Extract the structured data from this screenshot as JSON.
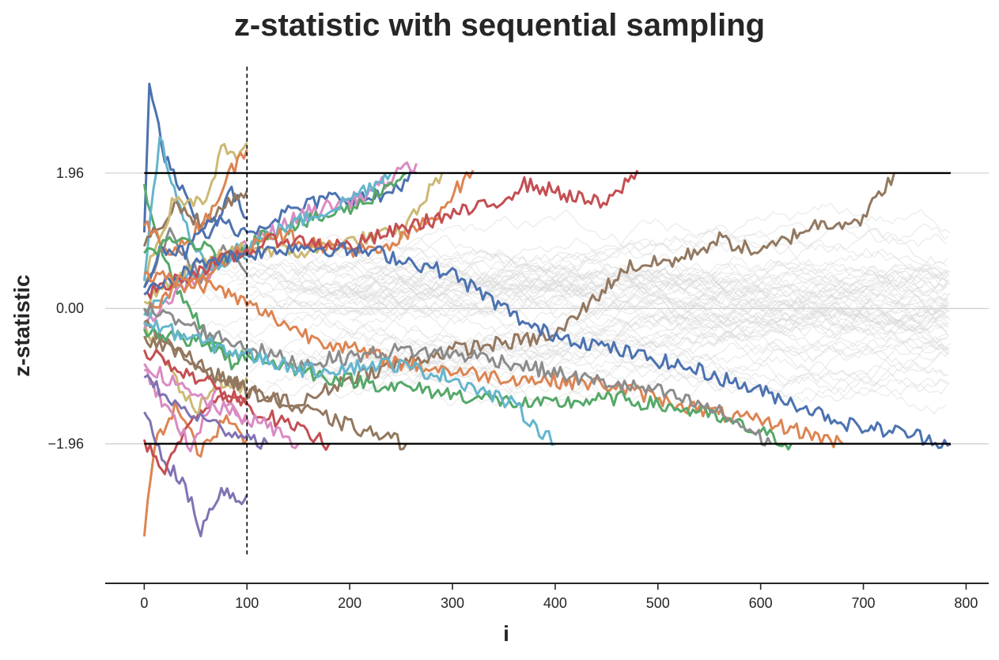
{
  "chart_data": {
    "type": "line",
    "title": "z-statistic with sequential sampling",
    "xlabel": "i",
    "ylabel": "z-statistic",
    "xlim": [
      -38,
      822
    ],
    "ylim": [
      -3.98,
      3.55
    ],
    "x_ticks": [
      0,
      100,
      200,
      300,
      400,
      500,
      600,
      700,
      800
    ],
    "x_tick_labels": [
      "0",
      "100",
      "200",
      "300",
      "400",
      "500",
      "600",
      "700",
      "800"
    ],
    "y_ticks": [
      1.96,
      0.0,
      -1.96
    ],
    "y_tick_labels": [
      "1.96",
      "0.00",
      "−1.96"
    ],
    "grid": "horizontal",
    "legend": "none",
    "reference_lines": [
      {
        "kind": "horizontal",
        "y": 1.96,
        "x_range": [
          0,
          785
        ],
        "style": "solid",
        "color": "#000000"
      },
      {
        "kind": "horizontal",
        "y": -1.96,
        "x_range": [
          0,
          785
        ],
        "style": "solid",
        "color": "#000000"
      },
      {
        "kind": "vertical",
        "x": 100,
        "y_range": [
          -3.6,
          3.5
        ],
        "style": "dashed",
        "color": "#000000"
      }
    ],
    "background_series": {
      "count": 60,
      "color": "#d9d9d9",
      "x_range": [
        0,
        785
      ],
      "note_visible": "unstopped paths in light gray"
    },
    "series": [
      {
        "color": "#4c72b0",
        "x": [
          0,
          5,
          20,
          40,
          60,
          85,
          100
        ],
        "y": [
          1.1,
          3.2,
          2.2,
          1.6,
          1.0,
          1.7,
          1.3
        ]
      },
      {
        "color": "#dd8452",
        "x": [
          0,
          10,
          30,
          55,
          80,
          100
        ],
        "y": [
          -3.3,
          -2.0,
          -1.4,
          -2.1,
          -1.6,
          -1.9
        ]
      },
      {
        "color": "#8172b3",
        "x": [
          0,
          20,
          40,
          55,
          75,
          95,
          100
        ],
        "y": [
          -1.5,
          -2.2,
          -2.6,
          -3.2,
          -2.6,
          -2.8,
          -2.7
        ]
      },
      {
        "color": "#55a868",
        "x": [
          0,
          15,
          35,
          60,
          85,
          100
        ],
        "y": [
          1.8,
          0.9,
          0.2,
          -0.4,
          -0.8,
          -0.6
        ]
      },
      {
        "color": "#c44e52",
        "x": [
          0,
          20,
          45,
          75,
          100
        ],
        "y": [
          -1.9,
          -2.4,
          -1.6,
          -1.2,
          -1.4
        ]
      },
      {
        "color": "#64b5cd",
        "x": [
          0,
          15,
          35,
          60,
          90,
          100
        ],
        "y": [
          0.4,
          2.5,
          1.4,
          0.6,
          0.9,
          0.7
        ]
      },
      {
        "color": "#ccb974",
        "x": [
          0,
          25,
          50,
          70,
          90,
          100
        ],
        "y": [
          -0.2,
          -0.9,
          -1.5,
          -1.0,
          -1.2,
          -1.0
        ]
      },
      {
        "color": "#937860",
        "x": [
          0,
          30,
          60,
          85,
          100
        ],
        "y": [
          0.9,
          1.5,
          1.2,
          1.6,
          1.7
        ]
      },
      {
        "color": "#da8bc3",
        "x": [
          0,
          20,
          45,
          70,
          100
        ],
        "y": [
          -0.9,
          -1.4,
          -2.0,
          -1.2,
          -1.6
        ]
      },
      {
        "color": "#8c8c8c",
        "x": [
          0,
          25,
          55,
          80,
          100
        ],
        "y": [
          0.3,
          1.1,
          0.4,
          0.9,
          0.5
        ]
      },
      {
        "color": "#ccb974",
        "x": [
          0,
          30,
          60,
          75,
          90,
          100
        ],
        "y": [
          0.5,
          1.6,
          1.5,
          2.3,
          2.2,
          2.4
        ]
      },
      {
        "color": "#dd8452",
        "x": [
          0,
          30,
          60,
          85,
          100
        ],
        "y": [
          1.2,
          0.8,
          1.3,
          2.0,
          2.3
        ]
      },
      {
        "color": "#4c72b0",
        "x": [
          0,
          15,
          40,
          65,
          100,
          140,
          180,
          230,
          265
        ],
        "y": [
          0.3,
          0.9,
          0.8,
          1.3,
          1.1,
          1.4,
          1.6,
          1.6,
          1.96
        ]
      },
      {
        "color": "#da8bc3",
        "x": [
          0,
          30,
          70,
          110,
          160,
          210,
          265
        ],
        "y": [
          -0.3,
          0.2,
          0.6,
          1.0,
          1.4,
          1.6,
          2.1
        ]
      },
      {
        "color": "#55a868",
        "x": [
          0,
          40,
          80,
          120,
          170,
          210,
          255
        ],
        "y": [
          0.8,
          1.0,
          0.7,
          1.1,
          1.3,
          1.5,
          1.96
        ]
      },
      {
        "color": "#ccb974",
        "x": [
          0,
          50,
          100,
          150,
          210,
          250,
          290
        ],
        "y": [
          0.1,
          0.6,
          0.9,
          0.8,
          1.0,
          1.1,
          1.96
        ]
      },
      {
        "color": "#64b5cd",
        "x": [
          0,
          40,
          90,
          140,
          190,
          240
        ],
        "y": [
          -0.1,
          0.4,
          0.8,
          1.2,
          1.5,
          1.96
        ]
      },
      {
        "color": "#dd8452",
        "x": [
          0,
          60,
          120,
          180,
          230,
          280,
          320
        ],
        "y": [
          0.0,
          0.5,
          1.1,
          0.9,
          0.8,
          1.3,
          2.0
        ]
      },
      {
        "color": "#c44e52",
        "x": [
          0,
          60,
          130,
          200,
          260,
          310,
          340,
          370,
          400,
          420,
          450,
          480
        ],
        "y": [
          0.2,
          0.6,
          1.0,
          0.9,
          1.2,
          1.4,
          1.5,
          1.8,
          1.7,
          1.6,
          1.5,
          2.0
        ]
      },
      {
        "color": "#937860",
        "x": [
          0,
          50,
          100,
          150,
          200,
          300,
          400,
          470,
          520,
          560,
          600,
          650,
          700,
          730
        ],
        "y": [
          -0.2,
          -0.8,
          -1.2,
          -1.4,
          -1.0,
          -0.6,
          -0.4,
          0.6,
          0.7,
          1.0,
          0.8,
          1.2,
          1.3,
          1.96
        ]
      },
      {
        "color": "#4c72b0",
        "x": [
          0,
          60,
          150,
          230,
          300,
          380,
          460,
          540,
          620,
          690,
          740,
          785
        ],
        "y": [
          0.2,
          0.7,
          0.9,
          0.8,
          0.5,
          -0.3,
          -0.6,
          -0.9,
          -1.3,
          -1.7,
          -1.8,
          -1.96
        ]
      },
      {
        "color": "#dd8452",
        "x": [
          0,
          70,
          160,
          250,
          350,
          450,
          550,
          620,
          680
        ],
        "y": [
          0.5,
          0.3,
          -0.4,
          -0.8,
          -1.0,
          -1.1,
          -1.5,
          -1.7,
          -1.96
        ]
      },
      {
        "color": "#55a868",
        "x": [
          0,
          80,
          180,
          280,
          380,
          460,
          540,
          600,
          630
        ],
        "y": [
          -0.3,
          -0.6,
          -1.0,
          -1.2,
          -1.4,
          -1.3,
          -1.5,
          -1.8,
          -1.96
        ]
      },
      {
        "color": "#8c8c8c",
        "x": [
          0,
          70,
          150,
          250,
          330,
          420,
          500,
          560,
          610
        ],
        "y": [
          0.0,
          -0.4,
          -0.8,
          -0.6,
          -0.7,
          -1.0,
          -1.2,
          -1.5,
          -1.96
        ]
      },
      {
        "color": "#64b5cd",
        "x": [
          0,
          80,
          160,
          240,
          300,
          360,
          400
        ],
        "y": [
          -0.2,
          -0.6,
          -0.9,
          -0.8,
          -1.0,
          -1.4,
          -1.96
        ]
      },
      {
        "color": "#937860",
        "x": [
          0,
          60,
          120,
          180,
          220,
          255
        ],
        "y": [
          -0.4,
          -0.9,
          -1.3,
          -1.6,
          -1.8,
          -1.96
        ]
      },
      {
        "color": "#c44e52",
        "x": [
          0,
          50,
          100,
          140,
          180
        ],
        "y": [
          -0.6,
          -1.0,
          -1.4,
          -1.7,
          -1.96
        ]
      },
      {
        "color": "#da8bc3",
        "x": [
          0,
          40,
          80,
          120,
          150
        ],
        "y": [
          -0.8,
          -1.2,
          -1.5,
          -1.7,
          -1.96
        ]
      },
      {
        "color": "#8172b3",
        "x": [
          0,
          30,
          70,
          110,
          120
        ],
        "y": [
          -1.0,
          -1.4,
          -1.7,
          -1.9,
          -1.96
        ]
      }
    ]
  }
}
